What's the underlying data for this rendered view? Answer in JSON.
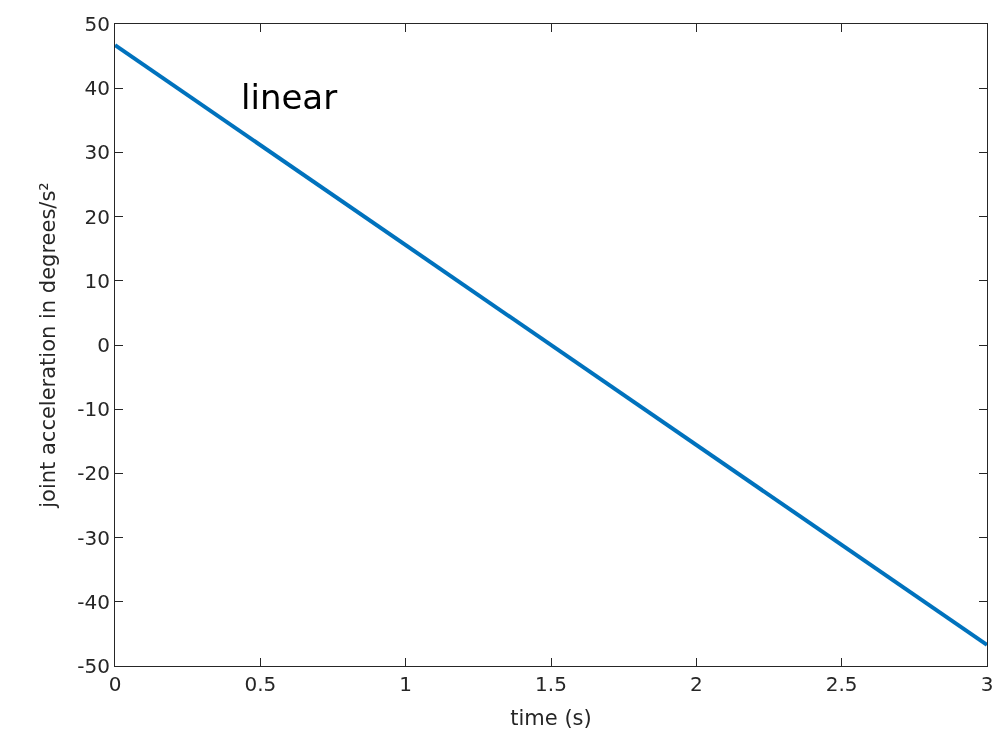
{
  "chart_data": {
    "type": "line",
    "xlabel": "time (s)",
    "ylabel": "joint acceleration in degrees/s²",
    "annotations": [
      "linear"
    ],
    "x": [
      0,
      3
    ],
    "series": [
      {
        "color": "#0072bd",
        "values": [
          46.7,
          -46.7
        ]
      }
    ],
    "xlim": [
      0,
      3
    ],
    "xticks": [
      0,
      0.5,
      1,
      1.5,
      2,
      2.5,
      3
    ],
    "ylim": [
      -50,
      50
    ],
    "yticks": [
      -50,
      -40,
      -30,
      -20,
      -10,
      0,
      10,
      20,
      30,
      40,
      50
    ],
    "legend": false,
    "marker": "none",
    "line_style": "solid"
  }
}
